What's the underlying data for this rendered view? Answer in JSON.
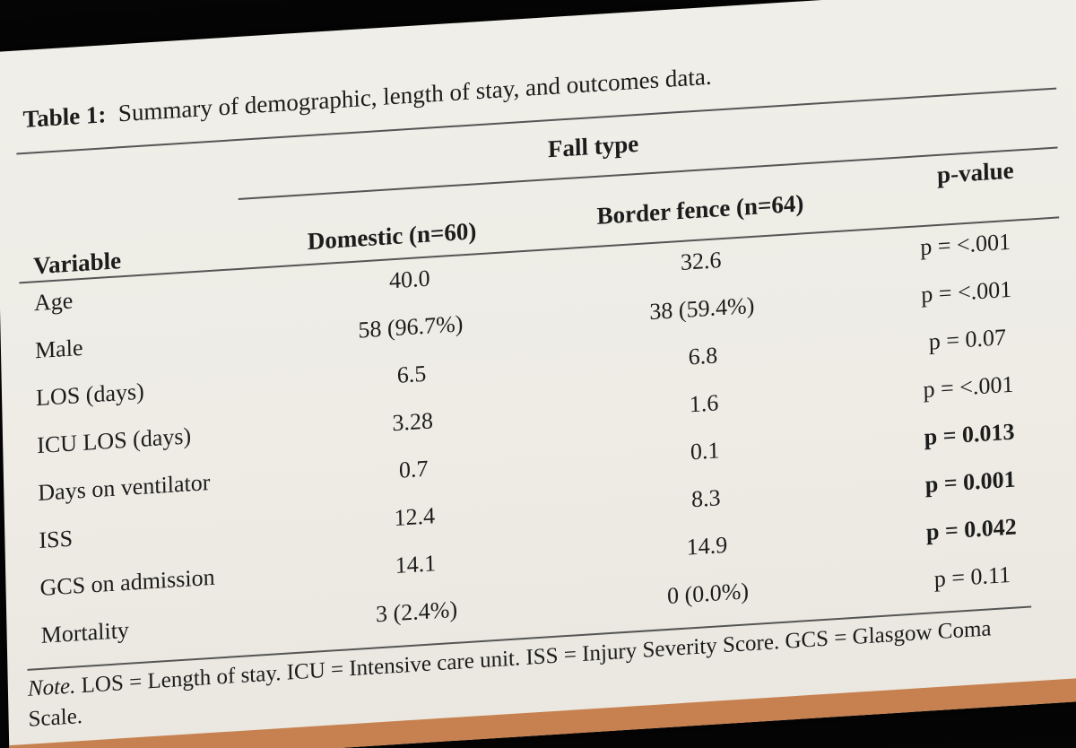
{
  "table": {
    "title_label": "Table 1:",
    "title_text": "Summary of demographic, length of stay, and outcomes data.",
    "group_header": "Fall type",
    "columns": {
      "variable": "Variable",
      "domestic": "Domestic (n=60)",
      "border": "Border fence (n=64)",
      "pvalue": "p-value"
    },
    "rows": [
      {
        "variable": "Age",
        "domestic": "40.0",
        "border": "32.6",
        "pvalue": "p = <.001",
        "pvalue_bold": false
      },
      {
        "variable": "Male",
        "domestic": "58 (96.7%)",
        "border": "38 (59.4%)",
        "pvalue": "p = <.001",
        "pvalue_bold": false
      },
      {
        "variable": "LOS (days)",
        "domestic": "6.5",
        "border": "6.8",
        "pvalue": "p = 0.07",
        "pvalue_bold": false
      },
      {
        "variable": "ICU LOS (days)",
        "domestic": "3.28",
        "border": "1.6",
        "pvalue": "p = <.001",
        "pvalue_bold": false
      },
      {
        "variable": "Days on ventilator",
        "domestic": "0.7",
        "border": "0.1",
        "pvalue": "p = 0.013",
        "pvalue_bold": true
      },
      {
        "variable": "ISS",
        "domestic": "12.4",
        "border": "8.3",
        "pvalue": "p = 0.001",
        "pvalue_bold": true
      },
      {
        "variable": "GCS on admission",
        "domestic": "14.1",
        "border": "14.9",
        "pvalue": "p = 0.042",
        "pvalue_bold": true
      },
      {
        "variable": "Mortality",
        "domestic": "3 (2.4%)",
        "border": "0 (0.0%)",
        "pvalue": "p = 0.11",
        "pvalue_bold": false
      }
    ],
    "note_label": "Note.",
    "note_text": "LOS = Length of stay. ICU = Intensive care unit. ISS = Injury Severity Score. GCS = Glasgow Coma Scale."
  }
}
